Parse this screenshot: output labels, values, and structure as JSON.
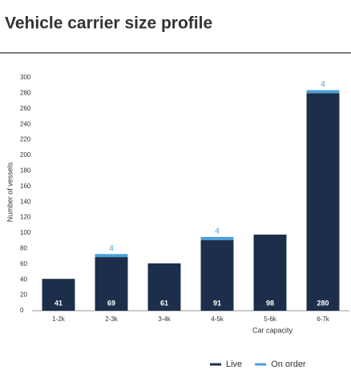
{
  "chart_data": {
    "type": "stacked_bar",
    "title": "Vehicle carrier size profile",
    "x_label": "Car capacity",
    "y_label": "Number of vessels",
    "categories": [
      "1-2k",
      "2-3k",
      "3-4k",
      "4-5k",
      "5-6k",
      "6-7k"
    ],
    "series": [
      {
        "name": "Live",
        "color": "#1c2e4a",
        "values": [
          41,
          69,
          61,
          91,
          98,
          280
        ]
      },
      {
        "name": "On order",
        "color": "#4a9fd8",
        "values": [
          null,
          4,
          null,
          4,
          null,
          4
        ]
      }
    ],
    "ylim": [
      0,
      300
    ],
    "yticks": [
      0,
      20,
      40,
      60,
      80,
      100,
      120,
      140,
      160,
      180,
      200,
      220,
      240,
      260,
      280,
      300
    ],
    "grid": false,
    "legend": "bottom-right"
  }
}
